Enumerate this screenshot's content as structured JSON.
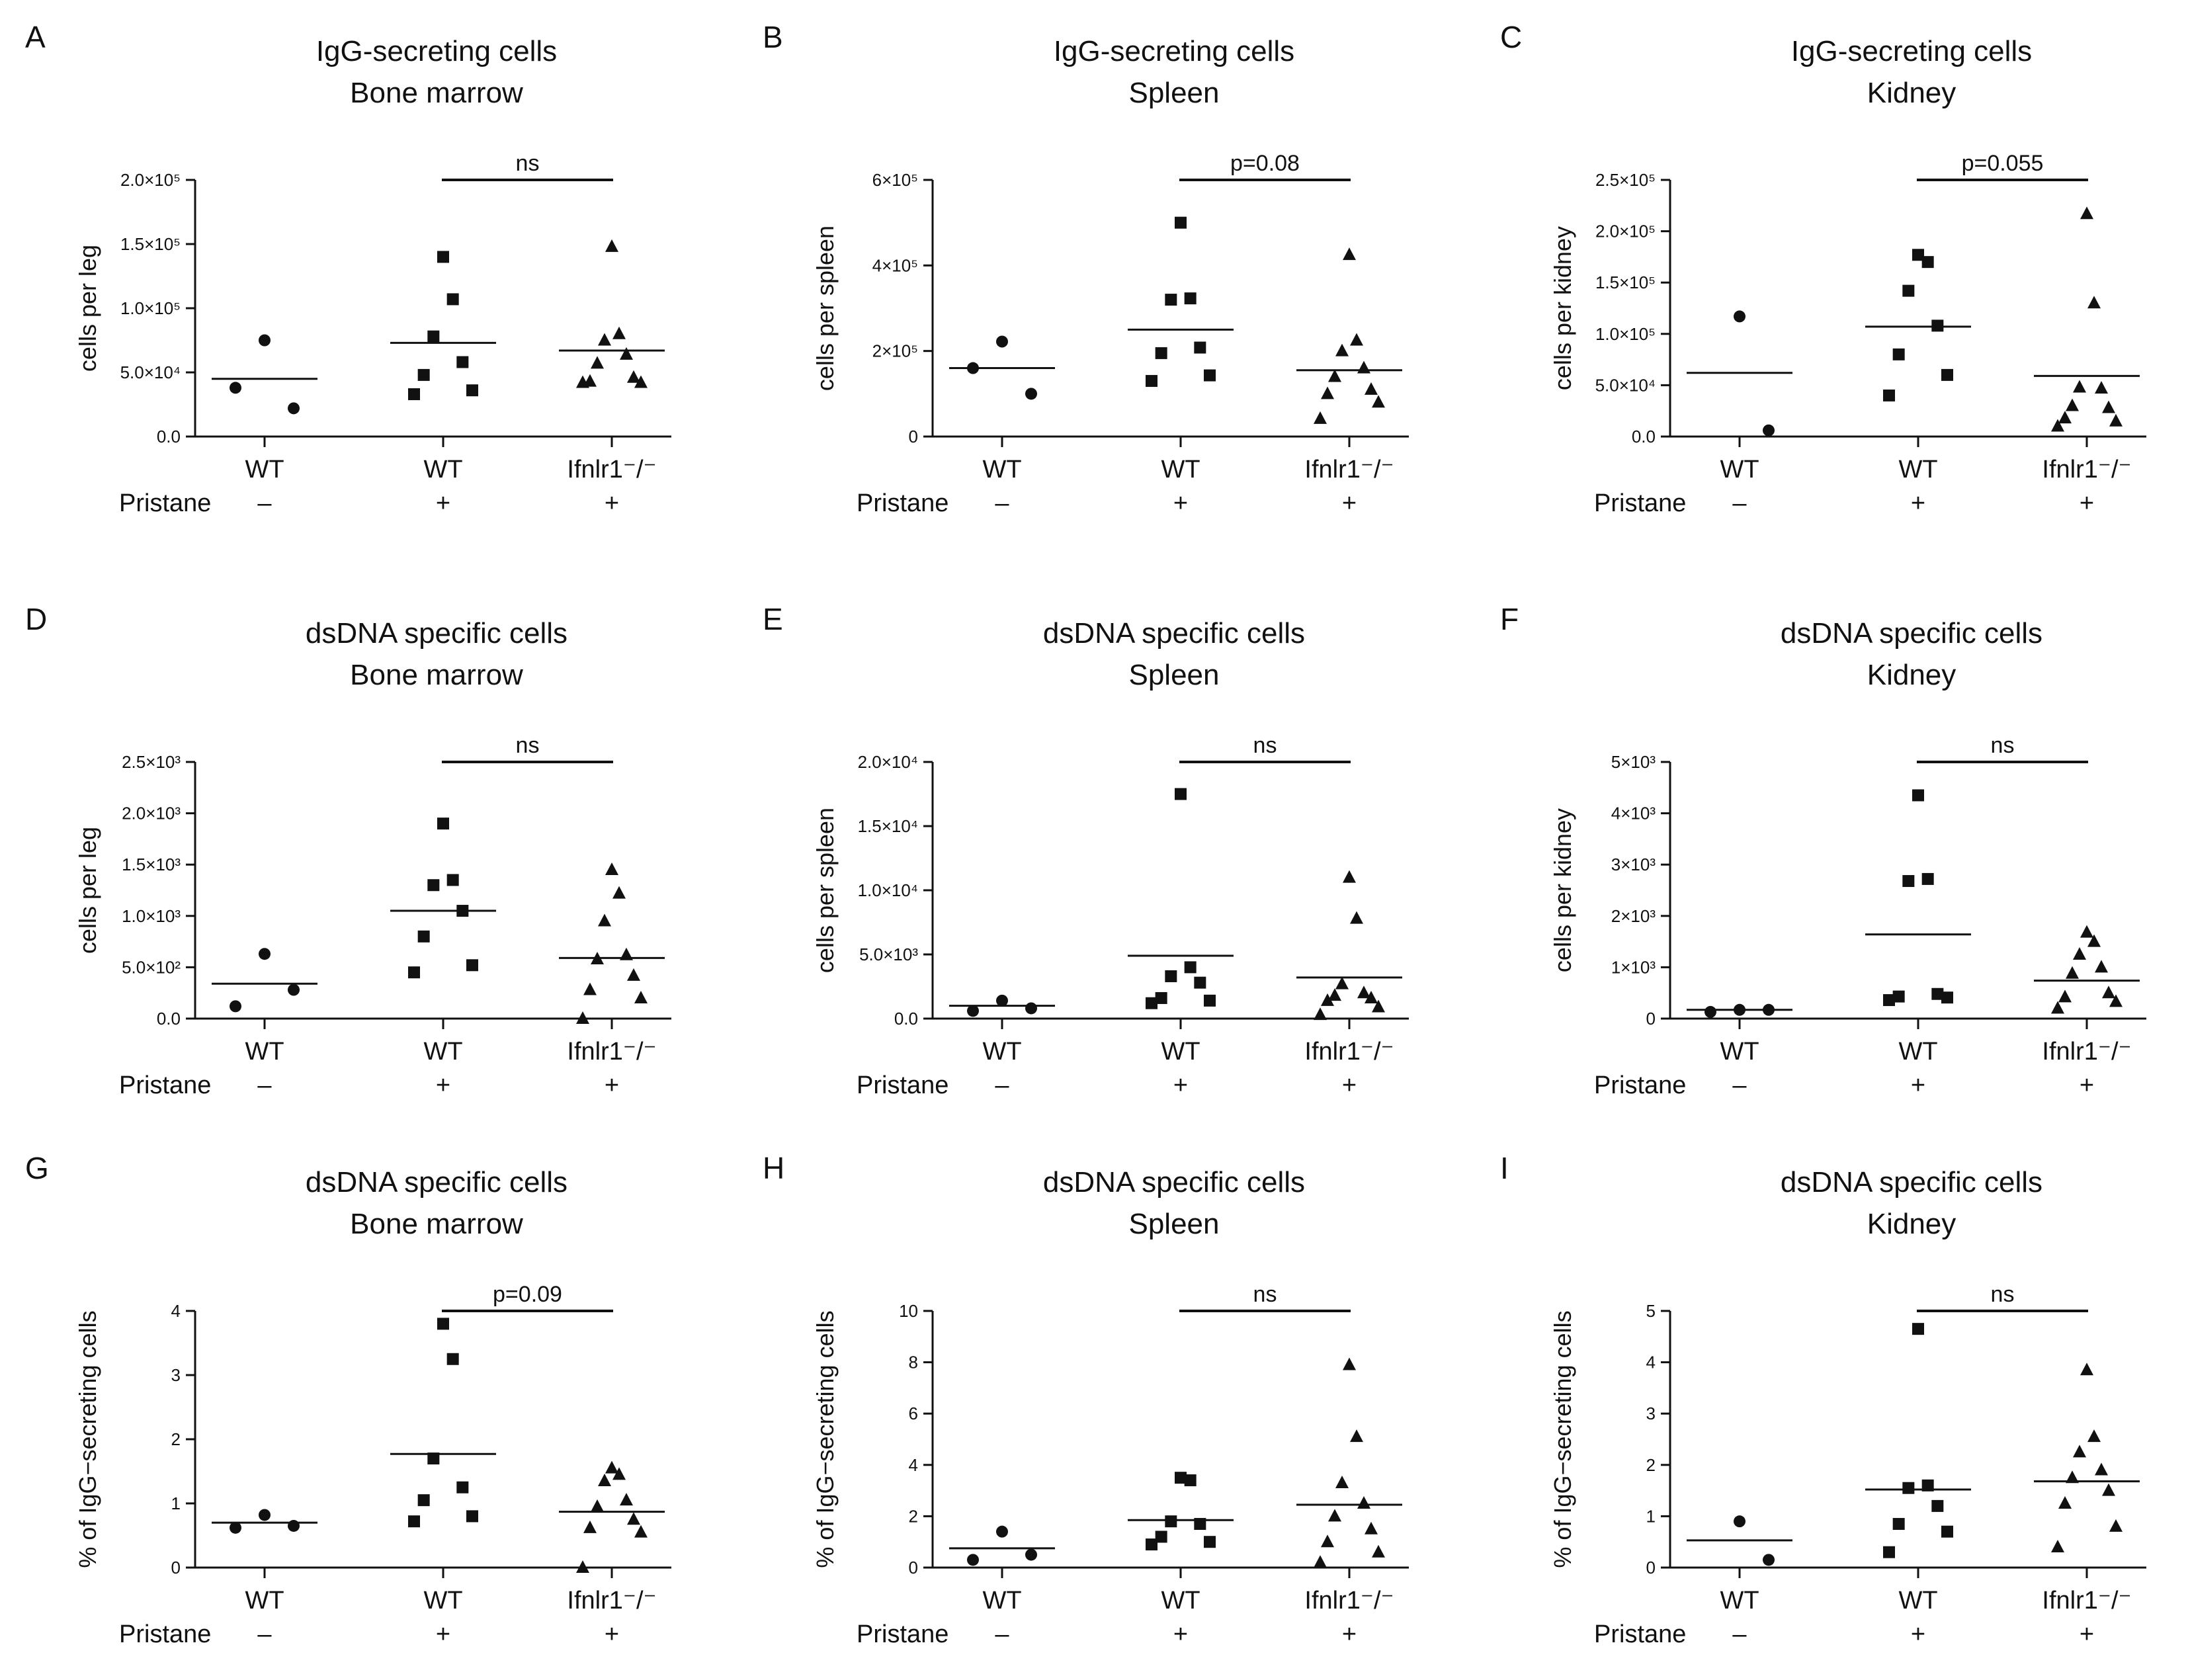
{
  "figure": {
    "pristane_label": "Pristane",
    "groups": [
      "WT",
      "WT",
      "Ifnlr1⁻/⁻"
    ],
    "pristane_signs": [
      "–",
      "+",
      "+"
    ]
  },
  "chart_data": [
    {
      "panel": "A",
      "type": "scatter",
      "title": [
        "IgG-secreting cells",
        "Bone marrow"
      ],
      "ylabel": "cells per leg",
      "ylim": [
        0,
        200000
      ],
      "yticks": [
        0,
        50000,
        100000,
        150000,
        200000
      ],
      "ytick_labels": [
        "0.0",
        "5.0×10⁴",
        "1.0×10⁵",
        "1.5×10⁵",
        "2.0×10⁵"
      ],
      "significance": "ns",
      "series": [
        {
          "marker": "circle",
          "values": [
            75000,
            22000,
            38000
          ],
          "mean": 45000
        },
        {
          "marker": "square",
          "values": [
            140000,
            107000,
            78000,
            58000,
            48000,
            36000,
            33000
          ],
          "mean": 73000
        },
        {
          "marker": "triangle",
          "values": [
            148000,
            80000,
            75000,
            64000,
            57000,
            46000,
            43000,
            42000,
            42000
          ],
          "mean": 67000
        }
      ]
    },
    {
      "panel": "B",
      "type": "scatter",
      "title": [
        "IgG-secreting cells",
        "Spleen"
      ],
      "ylabel": "cells per spleen",
      "ylim": [
        0,
        600000
      ],
      "yticks": [
        0,
        200000,
        400000,
        600000
      ],
      "ytick_labels": [
        "0",
        "2×10⁵",
        "4×10⁵",
        "6×10⁵"
      ],
      "significance": "p=0.08",
      "series": [
        {
          "marker": "circle",
          "values": [
            222000,
            100000,
            160000
          ],
          "mean": 160000
        },
        {
          "marker": "square",
          "values": [
            500000,
            323000,
            320000,
            208000,
            195000,
            143000,
            130000
          ],
          "mean": 250000
        },
        {
          "marker": "triangle",
          "values": [
            425000,
            225000,
            200000,
            160000,
            140000,
            110000,
            100000,
            80000,
            42000
          ],
          "mean": 155000
        }
      ]
    },
    {
      "panel": "C",
      "type": "scatter",
      "title": [
        "IgG-secreting cells",
        "Kidney"
      ],
      "ylabel": "cells per kidney",
      "ylim": [
        0,
        250000
      ],
      "yticks": [
        0,
        50000,
        100000,
        150000,
        200000,
        250000
      ],
      "ytick_labels": [
        "0.0",
        "5.0×10⁴",
        "1.0×10⁵",
        "1.5×10⁵",
        "2.0×10⁵",
        "2.5×10⁵"
      ],
      "significance": "p=0.055",
      "series": [
        {
          "marker": "circle",
          "values": [
            117000,
            6000
          ],
          "mean": 62000
        },
        {
          "marker": "square",
          "values": [
            177000,
            170000,
            142000,
            108000,
            80000,
            60000,
            40000
          ],
          "mean": 107000
        },
        {
          "marker": "triangle",
          "values": [
            217000,
            130000,
            48000,
            47000,
            30000,
            28000,
            18000,
            15000,
            10000
          ],
          "mean": 59000
        }
      ]
    },
    {
      "panel": "D",
      "type": "scatter",
      "title": [
        "dsDNA specific cells",
        "Bone marrow"
      ],
      "ylabel": "cells per leg",
      "ylim": [
        0,
        2500
      ],
      "yticks": [
        0,
        500,
        1000,
        1500,
        2000,
        2500
      ],
      "ytick_labels": [
        "0.0",
        "5.0×10²",
        "1.0×10³",
        "1.5×10³",
        "2.0×10³",
        "2.5×10³"
      ],
      "significance": "ns",
      "series": [
        {
          "marker": "circle",
          "values": [
            630,
            280,
            120
          ],
          "mean": 340
        },
        {
          "marker": "square",
          "values": [
            1900,
            1350,
            1300,
            1050,
            800,
            520,
            450
          ],
          "mean": 1050
        },
        {
          "marker": "triangle",
          "values": [
            1450,
            1220,
            950,
            620,
            580,
            420,
            280,
            200,
            0
          ],
          "mean": 590
        }
      ]
    },
    {
      "panel": "E",
      "type": "scatter",
      "title": [
        "dsDNA specific cells",
        "Spleen"
      ],
      "ylabel": "cells per spleen",
      "ylim": [
        0,
        20000
      ],
      "yticks": [
        0,
        5000,
        10000,
        15000,
        20000
      ],
      "ytick_labels": [
        "0.0",
        "5.0×10³",
        "1.0×10⁴",
        "1.5×10⁴",
        "2.0×10⁴"
      ],
      "significance": "ns",
      "series": [
        {
          "marker": "circle",
          "values": [
            1400,
            800,
            600
          ],
          "mean": 1000
        },
        {
          "marker": "square",
          "values": [
            17500,
            4000,
            3300,
            2800,
            1600,
            1400,
            1200
          ],
          "mean": 4900
        },
        {
          "marker": "triangle",
          "values": [
            11000,
            7800,
            2700,
            2000,
            1800,
            1600,
            1400,
            900,
            300
          ],
          "mean": 3200
        }
      ]
    },
    {
      "panel": "F",
      "type": "scatter",
      "title": [
        "dsDNA specific cells",
        "Kidney"
      ],
      "ylabel": "cells per kidney",
      "ylim": [
        0,
        5000
      ],
      "yticks": [
        0,
        1000,
        2000,
        3000,
        4000,
        5000
      ],
      "ytick_labels": [
        "0",
        "1×10³",
        "2×10³",
        "3×10³",
        "4×10³",
        "5×10³"
      ],
      "significance": "ns",
      "series": [
        {
          "marker": "circle",
          "values": [
            170,
            170,
            130
          ],
          "mean": 170
        },
        {
          "marker": "square",
          "values": [
            4350,
            2720,
            2680,
            480,
            430,
            410,
            360
          ],
          "mean": 1640
        },
        {
          "marker": "triangle",
          "values": [
            1680,
            1500,
            1250,
            1000,
            880,
            500,
            420,
            330,
            200
          ],
          "mean": 740
        }
      ]
    },
    {
      "panel": "G",
      "type": "scatter",
      "title": [
        "dsDNA specific cells",
        "Bone marrow"
      ],
      "ylabel": "% of IgG−secreting cells",
      "ylim": [
        0,
        4
      ],
      "yticks": [
        0,
        1,
        2,
        3,
        4
      ],
      "ytick_labels": [
        "0",
        "1",
        "2",
        "3",
        "4"
      ],
      "significance": "p=0.09",
      "series": [
        {
          "marker": "circle",
          "values": [
            0.82,
            0.65,
            0.62
          ],
          "mean": 0.7
        },
        {
          "marker": "square",
          "values": [
            3.8,
            3.25,
            1.7,
            1.25,
            1.05,
            0.8,
            0.72
          ],
          "mean": 1.77
        },
        {
          "marker": "triangle",
          "values": [
            1.55,
            1.45,
            1.35,
            1.05,
            0.95,
            0.75,
            0.62,
            0.55,
            0.0
          ],
          "mean": 0.87
        }
      ]
    },
    {
      "panel": "H",
      "type": "scatter",
      "title": [
        "dsDNA specific cells",
        "Spleen"
      ],
      "ylabel": "% of IgG−secreting cells",
      "ylim": [
        0,
        10
      ],
      "yticks": [
        0,
        2,
        4,
        6,
        8,
        10
      ],
      "ytick_labels": [
        "0",
        "2",
        "4",
        "6",
        "8",
        "10"
      ],
      "significance": "ns",
      "series": [
        {
          "marker": "circle",
          "values": [
            1.4,
            0.5,
            0.3
          ],
          "mean": 0.75
        },
        {
          "marker": "square",
          "values": [
            3.5,
            3.4,
            1.8,
            1.7,
            1.2,
            1.0,
            0.9
          ],
          "mean": 1.85
        },
        {
          "marker": "triangle",
          "values": [
            7.9,
            5.1,
            3.3,
            2.5,
            2.0,
            1.5,
            1.0,
            0.6,
            0.2
          ],
          "mean": 2.45
        }
      ]
    },
    {
      "panel": "I",
      "type": "scatter",
      "title": [
        "dsDNA specific cells",
        "Kidney"
      ],
      "ylabel": "% of IgG−secreting cells",
      "ylim": [
        0,
        5
      ],
      "yticks": [
        0,
        1,
        2,
        3,
        4,
        5
      ],
      "ytick_labels": [
        "0",
        "1",
        "2",
        "3",
        "4",
        "5"
      ],
      "significance": "ns",
      "series": [
        {
          "marker": "circle",
          "values": [
            0.9,
            0.15
          ],
          "mean": 0.53
        },
        {
          "marker": "square",
          "values": [
            4.65,
            1.6,
            1.55,
            1.2,
            0.85,
            0.7,
            0.3
          ],
          "mean": 1.52
        },
        {
          "marker": "triangle",
          "values": [
            3.85,
            2.55,
            2.25,
            1.9,
            1.75,
            1.5,
            1.25,
            0.8,
            0.4
          ],
          "mean": 1.68
        }
      ]
    }
  ]
}
